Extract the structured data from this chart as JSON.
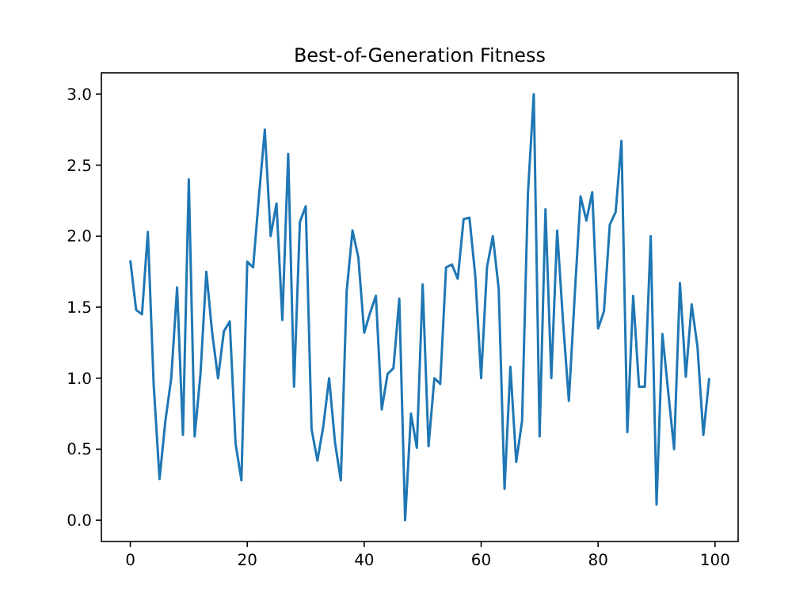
{
  "chart_data": {
    "type": "line",
    "title": "Best-of-Generation Fitness",
    "x": [
      0,
      1,
      2,
      3,
      4,
      5,
      6,
      7,
      8,
      9,
      10,
      11,
      12,
      13,
      14,
      15,
      16,
      17,
      18,
      19,
      20,
      21,
      22,
      23,
      24,
      25,
      26,
      27,
      28,
      29,
      30,
      31,
      32,
      33,
      34,
      35,
      36,
      37,
      38,
      39,
      40,
      41,
      42,
      43,
      44,
      45,
      46,
      47,
      48,
      49,
      50,
      51,
      52,
      53,
      54,
      55,
      56,
      57,
      58,
      59,
      60,
      61,
      62,
      63,
      64,
      65,
      66,
      67,
      68,
      69,
      70,
      71,
      72,
      73,
      74,
      75,
      76,
      77,
      78,
      79,
      80,
      81,
      82,
      83,
      84,
      85,
      86,
      87,
      88,
      89,
      90,
      91,
      92,
      93,
      94,
      95,
      96,
      97,
      98,
      99
    ],
    "series": [
      {
        "color": "#1f77b4",
        "values": [
          1.83,
          1.48,
          1.45,
          2.03,
          0.95,
          0.29,
          0.7,
          1.0,
          1.64,
          0.6,
          2.4,
          0.59,
          1.03,
          1.75,
          1.32,
          1.0,
          1.33,
          1.4,
          0.54,
          0.28,
          1.82,
          1.78,
          2.28,
          2.75,
          2.0,
          2.23,
          1.41,
          2.58,
          0.94,
          2.1,
          2.21,
          0.64,
          0.42,
          0.66,
          1.0,
          0.55,
          0.28,
          1.61,
          2.04,
          1.85,
          1.32,
          1.46,
          1.58,
          0.78,
          1.03,
          1.07,
          1.56,
          0.0,
          0.75,
          0.51,
          1.66,
          0.52,
          1.0,
          0.96,
          1.78,
          1.8,
          1.7,
          2.12,
          2.13,
          1.72,
          1.0,
          1.78,
          2.0,
          1.63,
          0.22,
          1.08,
          0.41,
          0.7,
          2.3,
          3.0,
          0.59,
          2.19,
          1.0,
          2.04,
          1.4,
          0.84,
          1.58,
          2.28,
          2.11,
          2.31,
          1.35,
          1.47,
          2.08,
          2.17,
          2.67,
          0.62,
          1.58,
          0.94,
          0.94,
          2.0,
          0.11,
          1.31,
          0.9,
          0.5,
          1.67,
          1.01,
          1.52,
          1.22,
          0.6,
          1.0
        ]
      }
    ],
    "xlim": [
      -4.95,
      103.95
    ],
    "xticks": [
      0,
      20,
      40,
      60,
      80,
      100
    ],
    "ylim": [
      -0.15,
      3.15
    ],
    "yticks": [
      {
        "value": 0,
        "label": "0.0"
      },
      {
        "value": 0.5,
        "label": "0.5"
      },
      {
        "value": 1,
        "label": "1.0"
      },
      {
        "value": 1.5,
        "label": "1.5"
      },
      {
        "value": 2,
        "label": "2.0"
      },
      {
        "value": 2.5,
        "label": "2.5"
      },
      {
        "value": 3,
        "label": "3.0"
      }
    ]
  }
}
